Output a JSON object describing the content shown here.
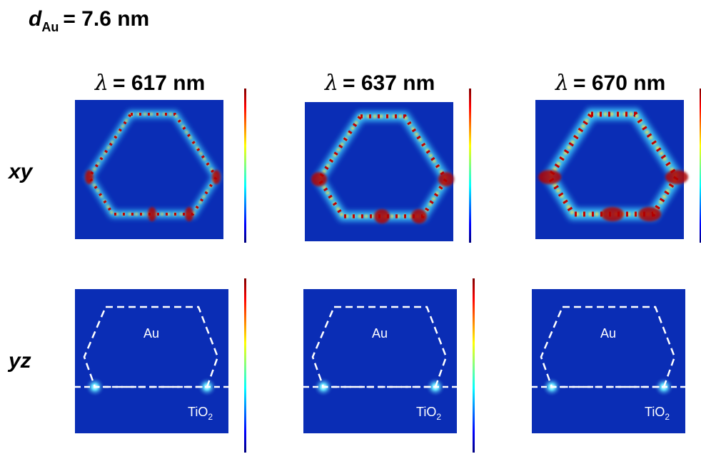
{
  "header": {
    "symbol": "d",
    "subscript": "Au",
    "text": "= 7.6 nm"
  },
  "columns": [
    {
      "symbol": "λ",
      "text": "= 617 nm"
    },
    {
      "symbol": "λ",
      "text": "= 637 nm"
    },
    {
      "symbol": "λ",
      "text": "= 670 nm"
    }
  ],
  "rows": [
    {
      "label": "xy"
    },
    {
      "label": "yz"
    }
  ],
  "materials": {
    "top": "Au",
    "bottom": {
      "text": "TiO",
      "subscript": "2"
    }
  }
}
